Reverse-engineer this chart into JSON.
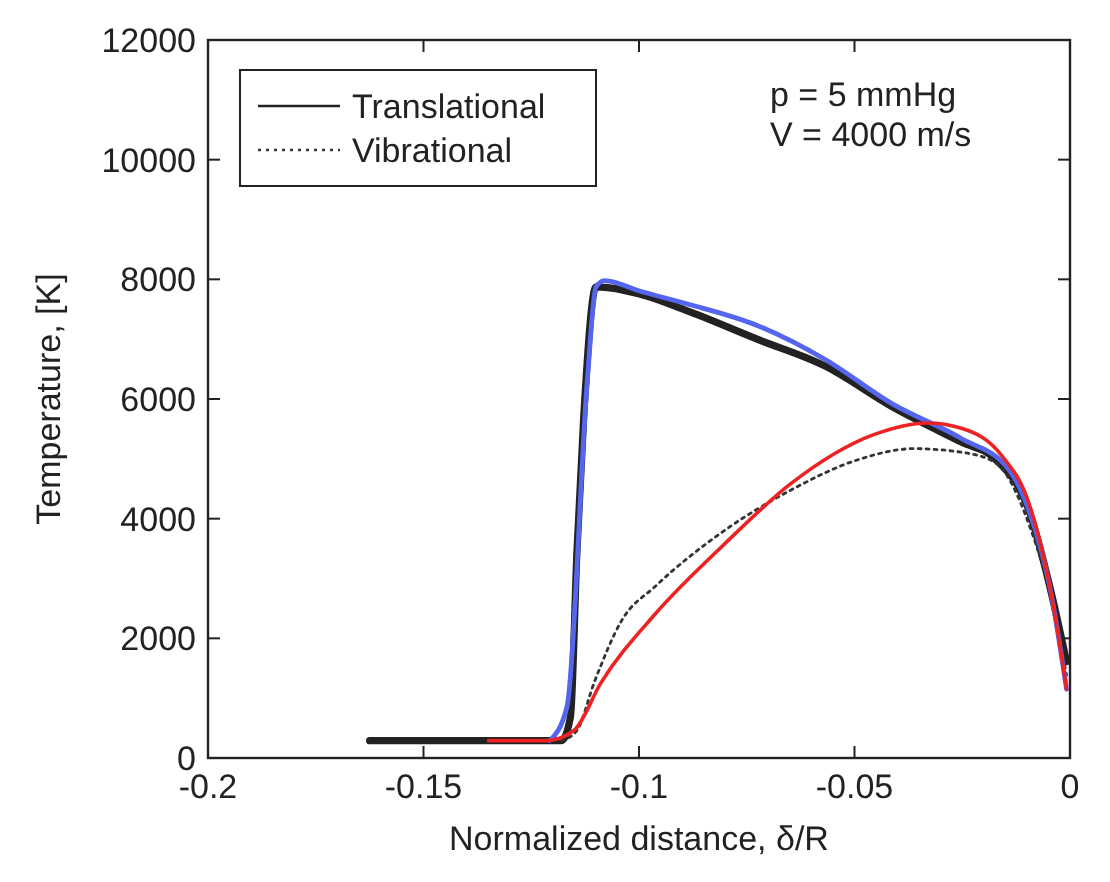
{
  "chart_data": {
    "type": "line",
    "xlabel": "Normalized distance, δ/R",
    "ylabel": "Temperature, [K]",
    "xlim": [
      -0.2,
      0
    ],
    "xticks": [
      -0.2,
      -0.15,
      -0.1,
      -0.05,
      0
    ],
    "ylim": [
      0,
      12000
    ],
    "yticks": [
      0,
      2000,
      4000,
      6000,
      8000,
      10000,
      12000
    ],
    "grid": false,
    "legend": "top left",
    "annotations": [
      "p = 5 mmHg",
      "V = 4000 m/s"
    ],
    "series": [
      {
        "name": "Translational",
        "color": "#222222",
        "line_style": "solid",
        "x": [
          -0.1625,
          -0.118,
          -0.1159,
          -0.1144,
          -0.1128,
          -0.11,
          -0.1088,
          -0.0997,
          -0.0883,
          -0.0726,
          -0.0568,
          -0.041,
          -0.0252,
          -0.0174,
          -0.0095,
          -0.0047,
          -0.0008
        ],
        "values": [
          290,
          290,
          690,
          3450,
          5740,
          7870,
          7870,
          7750,
          7460,
          7000,
          6550,
          5860,
          5280,
          5000,
          4130,
          2870,
          1610
        ]
      },
      {
        "name": "Vibrational",
        "color": "#333333",
        "line_style": "dotted",
        "x": [
          -0.118,
          -0.1144,
          -0.1104,
          -0.104,
          -0.0962,
          -0.0804,
          -0.0647,
          -0.049,
          -0.0363,
          -0.0252,
          -0.0174,
          -0.0095,
          -0.0032,
          -0.0008
        ],
        "values": [
          290,
          460,
          1260,
          2300,
          2870,
          3790,
          4480,
          4990,
          5170,
          5110,
          4940,
          3900,
          2300,
          1380
        ]
      },
      {
        "color": "#5566ee",
        "line_style": "solid",
        "x": [
          -0.1207,
          -0.1167,
          -0.112,
          -0.11,
          -0.108,
          -0.0997,
          -0.0883,
          -0.0726,
          -0.0568,
          -0.041,
          -0.0252,
          -0.0142,
          -0.0095,
          -0.0047,
          -0.0008
        ],
        "values": [
          290,
          860,
          6300,
          7870,
          7980,
          7800,
          7580,
          7230,
          6660,
          5910,
          5340,
          4820,
          4130,
          2870,
          1150
        ]
      },
      {
        "color": "#ee2222",
        "line_style": "solid",
        "x": [
          -0.1349,
          -0.1215,
          -0.1151,
          -0.1088,
          -0.0962,
          -0.0804,
          -0.0647,
          -0.0457,
          -0.0331,
          -0.0252,
          -0.0158,
          -0.0095,
          -0.0047,
          -0.0008
        ],
        "values": [
          290,
          290,
          460,
          1260,
          2410,
          3560,
          4590,
          5400,
          5600,
          5510,
          5050,
          4250,
          2870,
          1150
        ]
      }
    ]
  }
}
